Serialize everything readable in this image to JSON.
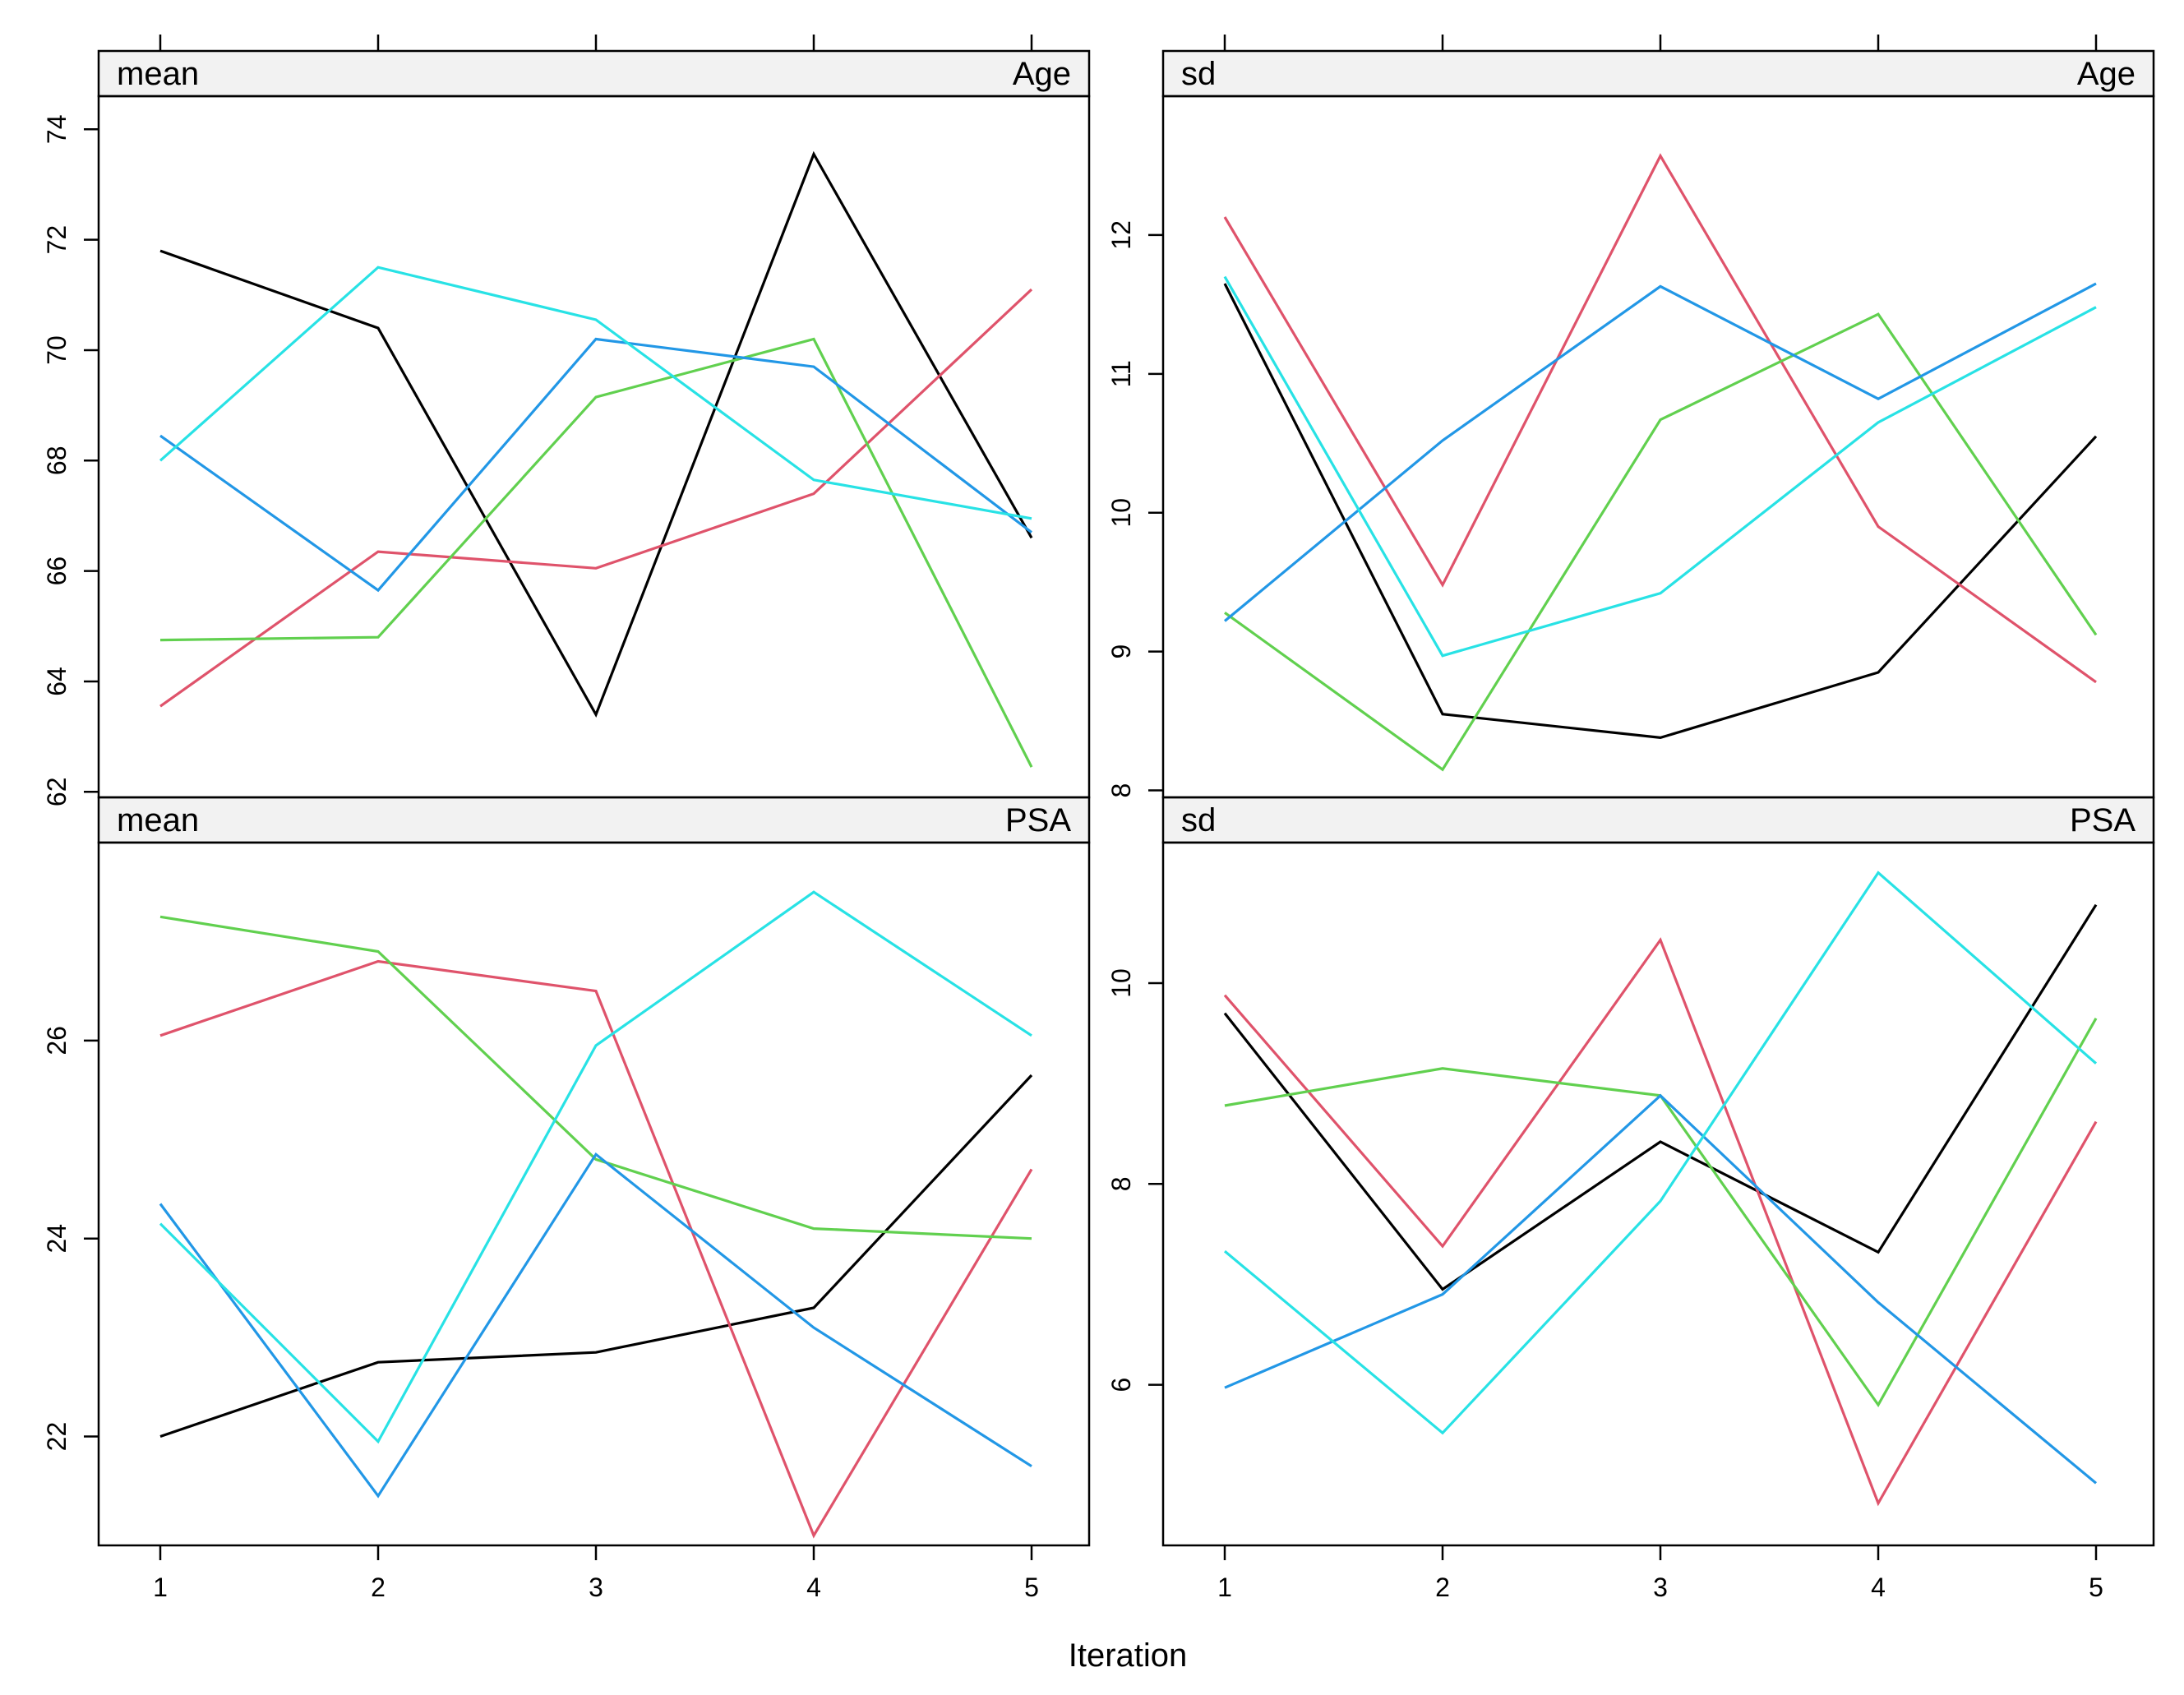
{
  "chart_data": {
    "type": "line",
    "xlabel": "Iteration",
    "x": [
      1,
      2,
      3,
      4,
      5
    ],
    "series_colors": [
      "#000000",
      "#DF536B",
      "#61D04F",
      "#2297E6",
      "#28E2E5"
    ],
    "panels": [
      {
        "stat": "mean",
        "variable": "Age",
        "ylim": [
          61.9,
          74.6
        ],
        "yticks": [
          62,
          64,
          66,
          68,
          70,
          72,
          74
        ],
        "series": [
          {
            "values": [
              71.8,
              70.4,
              63.4,
              73.55,
              66.6
            ]
          },
          {
            "values": [
              63.55,
              66.35,
              66.05,
              67.4,
              71.1
            ]
          },
          {
            "values": [
              64.75,
              64.8,
              69.15,
              70.2,
              62.45
            ]
          },
          {
            "values": [
              68.45,
              65.65,
              70.2,
              69.7,
              66.7
            ]
          },
          {
            "values": [
              68.0,
              71.5,
              70.55,
              67.65,
              66.95
            ]
          }
        ]
      },
      {
        "stat": "sd",
        "variable": "Age",
        "ylim": [
          7.95,
          13.0
        ],
        "yticks": [
          8,
          9,
          10,
          11,
          12
        ],
        "series": [
          {
            "values": [
              11.65,
              8.55,
              8.38,
              8.85,
              10.55
            ]
          },
          {
            "values": [
              12.13,
              9.48,
              12.57,
              9.9,
              8.78
            ]
          },
          {
            "values": [
              9.28,
              8.15,
              10.67,
              11.43,
              9.12
            ]
          },
          {
            "values": [
              9.22,
              10.52,
              11.63,
              10.82,
              11.65
            ]
          },
          {
            "values": [
              11.7,
              8.97,
              9.42,
              10.65,
              11.48
            ]
          }
        ]
      },
      {
        "stat": "mean",
        "variable": "PSA",
        "ylim": [
          20.9,
          28.0
        ],
        "yticks": [
          22,
          24,
          26
        ],
        "series": [
          {
            "values": [
              22.0,
              22.75,
              22.85,
              23.3,
              25.65
            ]
          },
          {
            "values": [
              26.05,
              26.8,
              26.5,
              21.0,
              24.7
            ]
          },
          {
            "values": [
              27.25,
              26.9,
              24.8,
              24.1,
              24.0
            ]
          },
          {
            "values": [
              24.35,
              21.4,
              24.85,
              23.1,
              21.7
            ]
          },
          {
            "values": [
              24.15,
              21.95,
              25.95,
              27.5,
              26.05
            ]
          }
        ]
      },
      {
        "stat": "sd",
        "variable": "PSA",
        "ylim": [
          4.4,
          11.4
        ],
        "yticks": [
          6,
          8,
          10
        ],
        "series": [
          {
            "values": [
              9.7,
              6.95,
              8.42,
              7.32,
              10.78
            ]
          },
          {
            "values": [
              9.88,
              7.38,
              10.43,
              4.82,
              8.62
            ]
          },
          {
            "values": [
              8.78,
              9.15,
              8.88,
              5.8,
              9.65
            ]
          },
          {
            "values": [
              5.97,
              6.9,
              8.88,
              6.82,
              5.02
            ]
          },
          {
            "values": [
              7.33,
              5.52,
              7.83,
              11.1,
              9.2
            ]
          }
        ]
      }
    ]
  }
}
